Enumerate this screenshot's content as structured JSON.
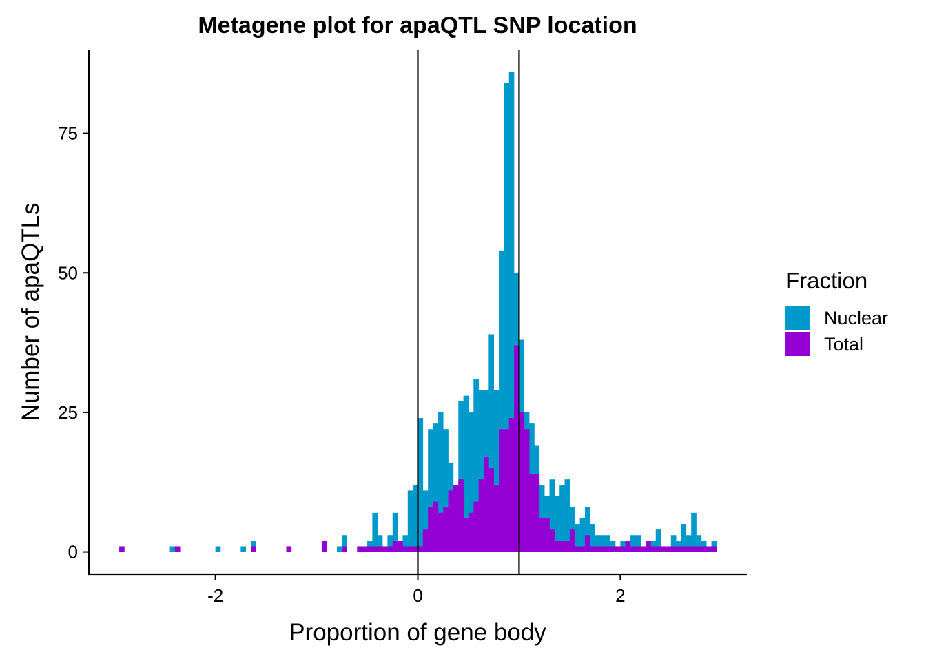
{
  "chart_data": {
    "type": "bar",
    "title": "Metagene plot for apaQTL SNP location",
    "xlabel": "Proportion of gene body",
    "ylabel": "Number of apaQTLs",
    "xlim": [
      -3.25,
      3.25
    ],
    "ylim": [
      -4,
      90
    ],
    "bin_width": 0.05,
    "x_ticks": [
      -2,
      0,
      2
    ],
    "x_tick_labels": [
      "-2",
      "0",
      "2"
    ],
    "y_ticks": [
      0,
      25,
      50,
      75
    ],
    "y_tick_labels": [
      "0",
      "25",
      "50",
      "75"
    ],
    "vlines": [
      0,
      1
    ],
    "grid": false,
    "legend": {
      "title": "Fraction",
      "position": "right"
    },
    "series": [
      {
        "name": "Nuclear",
        "color": "#0099CC",
        "bin_starts": [
          -2.45,
          -2.0,
          -1.95,
          -1.75,
          -1.65,
          -1.3,
          -0.95,
          -0.8,
          -0.75,
          -0.6,
          -0.55,
          -0.5,
          -0.45,
          -0.4,
          -0.35,
          -0.3,
          -0.25,
          -0.2,
          -0.15,
          -0.1,
          -0.05,
          0.0,
          0.05,
          0.1,
          0.15,
          0.2,
          0.25,
          0.3,
          0.35,
          0.4,
          0.45,
          0.5,
          0.55,
          0.6,
          0.65,
          0.7,
          0.75,
          0.8,
          0.85,
          0.9,
          0.95,
          1.0,
          1.05,
          1.1,
          1.15,
          1.2,
          1.25,
          1.3,
          1.35,
          1.4,
          1.45,
          1.5,
          1.55,
          1.6,
          1.65,
          1.7,
          1.75,
          1.8,
          1.85,
          1.9,
          1.95,
          2.0,
          2.05,
          2.1,
          2.15,
          2.2,
          2.25,
          2.3,
          2.35,
          2.4,
          2.45,
          2.5,
          2.55,
          2.6,
          2.65,
          2.7,
          2.75,
          2.8,
          2.85,
          2.9
        ],
        "values": [
          1,
          1,
          0,
          1,
          2,
          0,
          1,
          1,
          3,
          1,
          1,
          2,
          7,
          3,
          1,
          3,
          7,
          1,
          3,
          11,
          12,
          24,
          11,
          22,
          23,
          25,
          22,
          16,
          10,
          27,
          28,
          25,
          31,
          29,
          29,
          39,
          29,
          54,
          84,
          86,
          50,
          38,
          25,
          23,
          19,
          12,
          10,
          13,
          10,
          12,
          13,
          8,
          5,
          6,
          8,
          5,
          3,
          3,
          3,
          2,
          1,
          2,
          1,
          3,
          3,
          1,
          1,
          2,
          4,
          1,
          1,
          3,
          2,
          5,
          3,
          7,
          3,
          2,
          1,
          2
        ]
      },
      {
        "name": "Total",
        "color": "#9400D3",
        "bin_starts": [
          -2.95,
          -2.4,
          -1.65,
          -1.3,
          -0.95,
          -0.75,
          -0.6,
          -0.55,
          -0.5,
          -0.45,
          -0.4,
          -0.35,
          -0.3,
          -0.25,
          -0.2,
          -0.15,
          -0.1,
          -0.05,
          0.0,
          0.05,
          0.1,
          0.15,
          0.2,
          0.25,
          0.3,
          0.35,
          0.4,
          0.45,
          0.5,
          0.55,
          0.6,
          0.65,
          0.7,
          0.75,
          0.8,
          0.85,
          0.9,
          0.95,
          1.0,
          1.05,
          1.1,
          1.15,
          1.2,
          1.25,
          1.3,
          1.35,
          1.4,
          1.45,
          1.5,
          1.55,
          1.6,
          1.65,
          1.7,
          1.75,
          1.8,
          1.85,
          1.9,
          1.95,
          2.0,
          2.05,
          2.1,
          2.15,
          2.2,
          2.25,
          2.3,
          2.35,
          2.4,
          2.45,
          2.5,
          2.55,
          2.6,
          2.65,
          2.7,
          2.75,
          2.8,
          2.85,
          2.9
        ],
        "values": [
          1,
          1,
          1,
          1,
          2,
          1,
          1,
          1,
          1,
          1,
          1,
          1,
          1,
          2,
          2,
          1,
          1,
          1,
          1,
          4,
          8,
          9,
          7,
          8,
          11,
          12,
          13,
          6,
          7,
          9,
          13,
          17,
          15,
          12,
          22,
          22,
          24,
          37,
          25,
          22,
          14,
          14,
          6,
          6,
          4,
          2,
          2,
          2,
          4,
          1,
          1,
          3,
          1,
          1,
          1,
          1,
          1,
          1,
          1,
          2,
          1,
          1,
          1,
          2,
          1,
          1,
          1,
          1,
          1,
          1,
          1,
          1,
          1,
          1,
          1,
          1,
          1
        ]
      }
    ]
  }
}
